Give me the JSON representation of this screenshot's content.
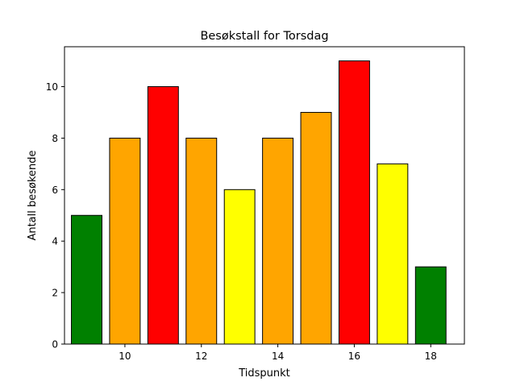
{
  "chart_data": {
    "type": "bar",
    "title": "Besøkstall for Torsdag",
    "xlabel": "Tidspunkt",
    "ylabel": "Antall besøkende",
    "x": [
      9,
      10,
      11,
      12,
      13,
      14,
      15,
      16,
      17,
      18
    ],
    "values": [
      5,
      8,
      10,
      8,
      6,
      8,
      9,
      11,
      7,
      3
    ],
    "bar_colors": [
      "#008000",
      "#ffa500",
      "#ff0000",
      "#ffa500",
      "#ffff00",
      "#ffa500",
      "#ffa500",
      "#ff0000",
      "#ffff00",
      "#008000"
    ],
    "edge_color": "#000000",
    "xlim": [
      8.42,
      18.88
    ],
    "ylim": [
      0,
      11.55
    ],
    "x_ticks": [
      10,
      12,
      14,
      16,
      18
    ],
    "y_ticks": [
      0,
      2,
      4,
      6,
      8,
      10
    ],
    "grid": false,
    "legend": "none"
  }
}
